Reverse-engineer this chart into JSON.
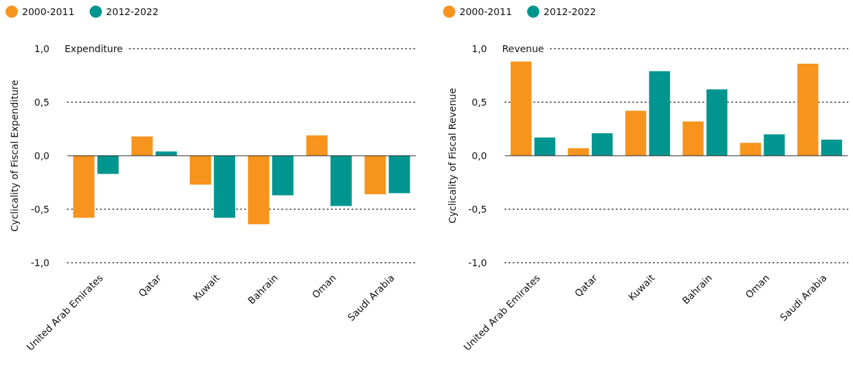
{
  "chart_data": [
    {
      "type": "bar",
      "title": "Expenditure",
      "ylabel": "Cyclicality of Fiscal Expenditure",
      "categories": [
        "United Arab Emirates",
        "Qatar",
        "Kuwait",
        "Bahrain",
        "Oman",
        "Saudi Arabia"
      ],
      "series": [
        {
          "name": "2000-2011",
          "color": "#f7941d",
          "values": [
            -0.58,
            0.18,
            -0.27,
            -0.64,
            0.19,
            -0.36
          ]
        },
        {
          "name": "2012-2022",
          "color": "#00968f",
          "values": [
            -0.17,
            0.04,
            -0.58,
            -0.37,
            -0.47,
            -0.35
          ]
        }
      ],
      "ylim": [
        -1,
        1
      ],
      "yticks": [
        {
          "value": -1,
          "label": "-1,0"
        },
        {
          "value": -0.5,
          "label": "-0,5"
        },
        {
          "value": 0,
          "label": "0,0"
        },
        {
          "value": 0.5,
          "label": "0,5"
        },
        {
          "value": 1,
          "label": "1,0"
        }
      ],
      "grid": "y",
      "legend": "top left"
    },
    {
      "type": "bar",
      "title": "Revenue",
      "ylabel": "Cyclicality of Fiscal Revenue",
      "categories": [
        "United Arab Emirates",
        "Qatar",
        "Kuwait",
        "Bahrain",
        "Oman",
        "Saudi Arabia"
      ],
      "series": [
        {
          "name": "2000-2011",
          "color": "#f7941d",
          "values": [
            0.88,
            0.07,
            0.42,
            0.32,
            0.12,
            0.86
          ]
        },
        {
          "name": "2012-2022",
          "color": "#00968f",
          "values": [
            0.17,
            0.21,
            0.79,
            0.62,
            0.2,
            0.15
          ]
        }
      ],
      "ylim": [
        -1,
        1
      ],
      "yticks": [
        {
          "value": -1,
          "label": "-1,0"
        },
        {
          "value": -0.5,
          "label": "-0,5"
        },
        {
          "value": 0,
          "label": "0,0"
        },
        {
          "value": 0.5,
          "label": "0,5"
        },
        {
          "value": 1,
          "label": "1,0"
        }
      ],
      "grid": "y",
      "legend": "top left"
    }
  ]
}
